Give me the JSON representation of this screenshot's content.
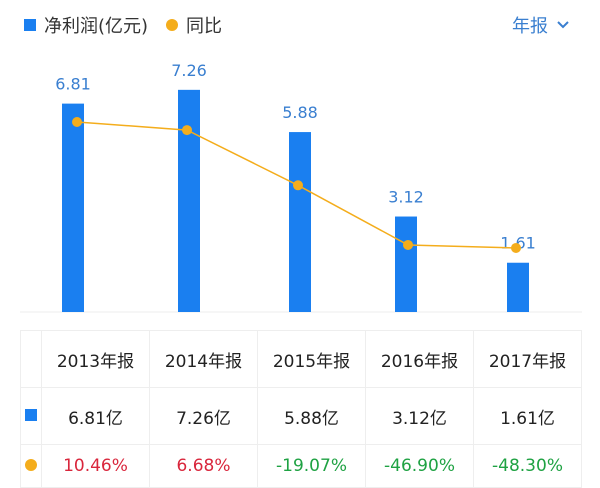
{
  "legend": {
    "bar_label": "净利润(亿元)",
    "line_label": "同比"
  },
  "period_selector": {
    "label": "年报",
    "icon": "chevron-down-icon"
  },
  "colors": {
    "bar": "#1a7ff0",
    "line": "#f4ad1c",
    "positive": "#d9263c",
    "negative": "#1fa243",
    "period": "#3a7fd0"
  },
  "chart_data": {
    "type": "bar",
    "categories": [
      "2013年报",
      "2014年报",
      "2015年报",
      "2016年报",
      "2017年报"
    ],
    "series": [
      {
        "name": "净利润(亿元)",
        "type": "bar",
        "values": [
          6.81,
          7.26,
          5.88,
          3.12,
          1.61
        ],
        "labels": [
          "6.81",
          "7.26",
          "5.88",
          "3.12",
          "1.61"
        ]
      },
      {
        "name": "同比",
        "type": "line",
        "values": [
          10.46,
          6.68,
          -19.07,
          -46.9,
          -48.3
        ]
      }
    ],
    "grid": false
  },
  "table": {
    "headers": [
      "2013年报",
      "2014年报",
      "2015年报",
      "2016年报",
      "2017年报"
    ],
    "profit": [
      "6.81亿",
      "7.26亿",
      "5.88亿",
      "3.12亿",
      "1.61亿"
    ],
    "yoy": [
      "10.46%",
      "6.68%",
      "-19.07%",
      "-46.90%",
      "-48.30%"
    ]
  }
}
